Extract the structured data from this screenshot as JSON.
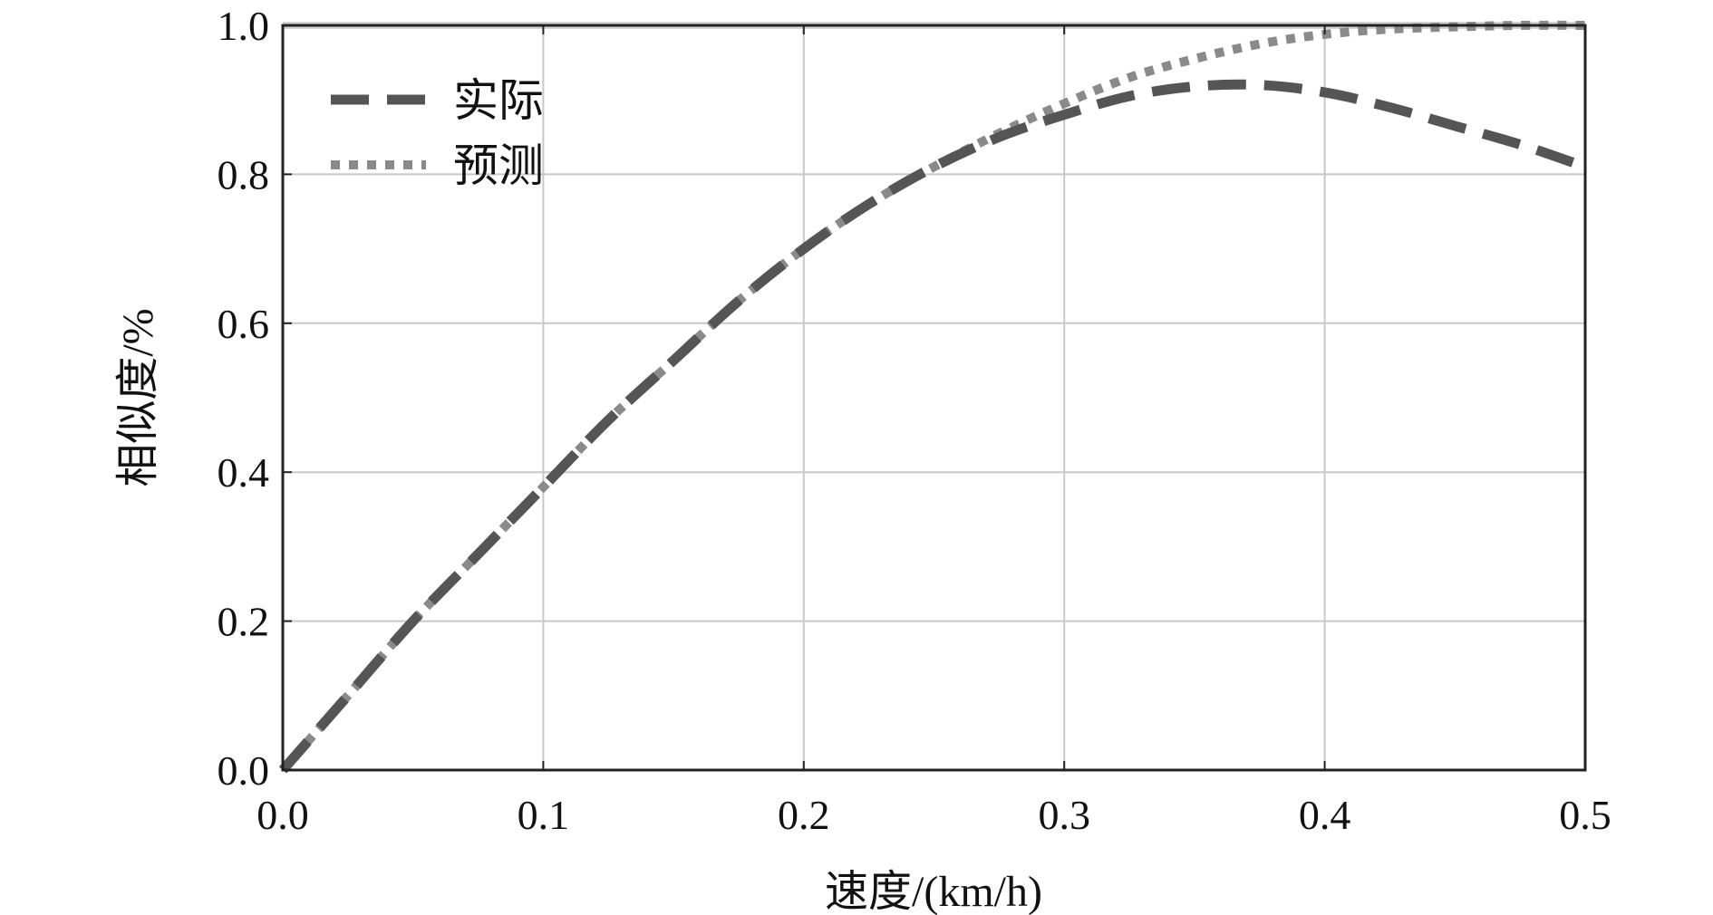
{
  "chart_data": {
    "type": "line",
    "title": "",
    "xlabel": "速度/(km/h)",
    "ylabel": "相似度/%",
    "xlim": [
      0,
      0.5
    ],
    "ylim": [
      0,
      1.0
    ],
    "x_ticks": [
      "0.0",
      "0.1",
      "0.2",
      "0.3",
      "0.4",
      "0.5"
    ],
    "y_ticks": [
      "0.0",
      "0.2",
      "0.4",
      "0.6",
      "0.8",
      "1.0"
    ],
    "grid": true,
    "legend_position": "top-left",
    "x": [
      0.0,
      0.025,
      0.05,
      0.075,
      0.1,
      0.125,
      0.15,
      0.175,
      0.2,
      0.225,
      0.25,
      0.275,
      0.3,
      0.325,
      0.35,
      0.375,
      0.4,
      0.425,
      0.45,
      0.475,
      0.5
    ],
    "series": [
      {
        "name": "实际",
        "style": "dashed",
        "color": "#555555",
        "values": [
          0.0,
          0.1,
          0.2,
          0.29,
          0.38,
          0.47,
          0.55,
          0.63,
          0.7,
          0.76,
          0.81,
          0.85,
          0.88,
          0.905,
          0.918,
          0.92,
          0.91,
          0.89,
          0.865,
          0.84,
          0.81
        ]
      },
      {
        "name": "预测",
        "style": "dotted",
        "color": "#8a8a8a",
        "values": [
          0.0,
          0.1,
          0.2,
          0.29,
          0.38,
          0.47,
          0.55,
          0.63,
          0.7,
          0.76,
          0.81,
          0.855,
          0.895,
          0.93,
          0.955,
          0.975,
          0.988,
          0.995,
          0.998,
          1.0,
          1.0
        ]
      }
    ]
  }
}
